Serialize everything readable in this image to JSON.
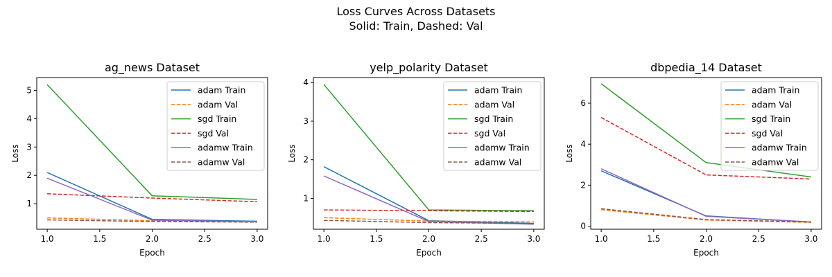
{
  "figure": {
    "suptitle_line1": "Loss Curves Across Datasets",
    "suptitle_line2": "Solid: Train, Dashed: Val"
  },
  "series_style": {
    "adam Train": {
      "color": "#1f77b4",
      "dashed": false
    },
    "adam Val": {
      "color": "#ff7f0e",
      "dashed": true
    },
    "sgd Train": {
      "color": "#2ca02c",
      "dashed": false
    },
    "sgd Val": {
      "color": "#d62728",
      "dashed": true
    },
    "adamw Train": {
      "color": "#9467bd",
      "dashed": false
    },
    "adamw Val": {
      "color": "#8c564b",
      "dashed": true
    }
  },
  "chart_data": [
    {
      "type": "line",
      "title": "ag_news Dataset",
      "xlabel": "Epoch",
      "ylabel": "Loss",
      "x": [
        1.0,
        2.0,
        3.0
      ],
      "xlim": [
        0.9,
        3.1
      ],
      "ylim": [
        0.1,
        5.45
      ],
      "xticks": [
        "1.0",
        "1.5",
        "2.0",
        "2.5",
        "3.0"
      ],
      "yticks": [
        "1",
        "2",
        "3",
        "4",
        "5"
      ],
      "legend": "top-right",
      "grid": false,
      "series": [
        {
          "name": "adam Train",
          "values": [
            2.1,
            0.45,
            0.38
          ]
        },
        {
          "name": "adam Val",
          "values": [
            0.5,
            0.4,
            0.37
          ]
        },
        {
          "name": "sgd Train",
          "values": [
            5.2,
            1.28,
            1.15
          ]
        },
        {
          "name": "sgd Val",
          "values": [
            1.35,
            1.2,
            1.07
          ]
        },
        {
          "name": "adamw Train",
          "values": [
            1.9,
            0.42,
            0.36
          ]
        },
        {
          "name": "adamw Val",
          "values": [
            0.43,
            0.37,
            0.35
          ]
        }
      ]
    },
    {
      "type": "line",
      "title": "yelp_polarity Dataset",
      "xlabel": "Epoch",
      "ylabel": "Loss",
      "x": [
        1.0,
        2.0,
        3.0
      ],
      "xlim": [
        0.9,
        3.1
      ],
      "ylim": [
        0.2,
        4.13
      ],
      "xticks": [
        "1.0",
        "1.5",
        "2.0",
        "2.5",
        "3.0"
      ],
      "yticks": [
        "1",
        "2",
        "3",
        "4"
      ],
      "legend": "top-right",
      "grid": false,
      "series": [
        {
          "name": "adam Train",
          "values": [
            1.82,
            0.42,
            0.35
          ]
        },
        {
          "name": "adam Val",
          "values": [
            0.5,
            0.41,
            0.39
          ]
        },
        {
          "name": "sgd Train",
          "values": [
            3.95,
            0.7,
            0.68
          ]
        },
        {
          "name": "sgd Val",
          "values": [
            0.7,
            0.68,
            0.66
          ]
        },
        {
          "name": "adamw Train",
          "values": [
            1.58,
            0.4,
            0.33
          ]
        },
        {
          "name": "adamw Val",
          "values": [
            0.43,
            0.37,
            0.35
          ]
        }
      ]
    },
    {
      "type": "line",
      "title": "dbpedia_14 Dataset",
      "xlabel": "Epoch",
      "ylabel": "Loss",
      "x": [
        1.0,
        2.0,
        3.0
      ],
      "xlim": [
        0.9,
        3.1
      ],
      "ylim": [
        -0.15,
        7.25
      ],
      "xticks": [
        "1.0",
        "1.5",
        "2.0",
        "2.5",
        "3.0"
      ],
      "yticks": [
        "0",
        "2",
        "4",
        "6"
      ],
      "legend": "top-right",
      "grid": false,
      "series": [
        {
          "name": "adam Train",
          "values": [
            2.7,
            0.5,
            0.2
          ]
        },
        {
          "name": "adam Val",
          "values": [
            0.8,
            0.3,
            0.18
          ]
        },
        {
          "name": "sgd Train",
          "values": [
            6.95,
            3.1,
            2.4
          ]
        },
        {
          "name": "sgd Val",
          "values": [
            5.3,
            2.5,
            2.3
          ]
        },
        {
          "name": "adamw Train",
          "values": [
            2.8,
            0.48,
            0.2
          ]
        },
        {
          "name": "adamw Val",
          "values": [
            0.85,
            0.32,
            0.2
          ]
        }
      ]
    }
  ]
}
